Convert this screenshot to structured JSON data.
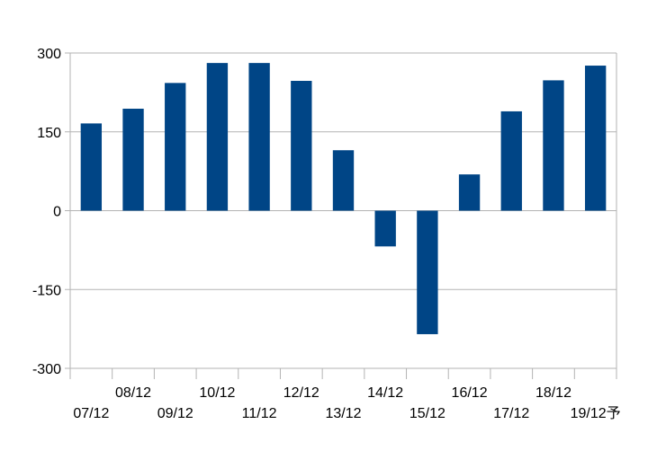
{
  "chart_data": {
    "type": "bar",
    "categories": [
      "07/12",
      "08/12",
      "09/12",
      "10/12",
      "11/12",
      "12/12",
      "13/12",
      "14/12",
      "15/12",
      "16/12",
      "17/12",
      "18/12",
      "19/12予"
    ],
    "values": [
      166,
      194,
      243,
      281,
      281,
      247,
      115,
      -68,
      -235,
      69,
      189,
      248,
      276
    ],
    "title": "",
    "xlabel": "",
    "ylabel": "",
    "ylim": [
      -300,
      300
    ],
    "yticks": [
      300,
      150,
      0,
      -150,
      -300
    ],
    "grid": true,
    "legend": "none",
    "bar_color": "#004586",
    "gridline_color": "#b3b3b3"
  }
}
